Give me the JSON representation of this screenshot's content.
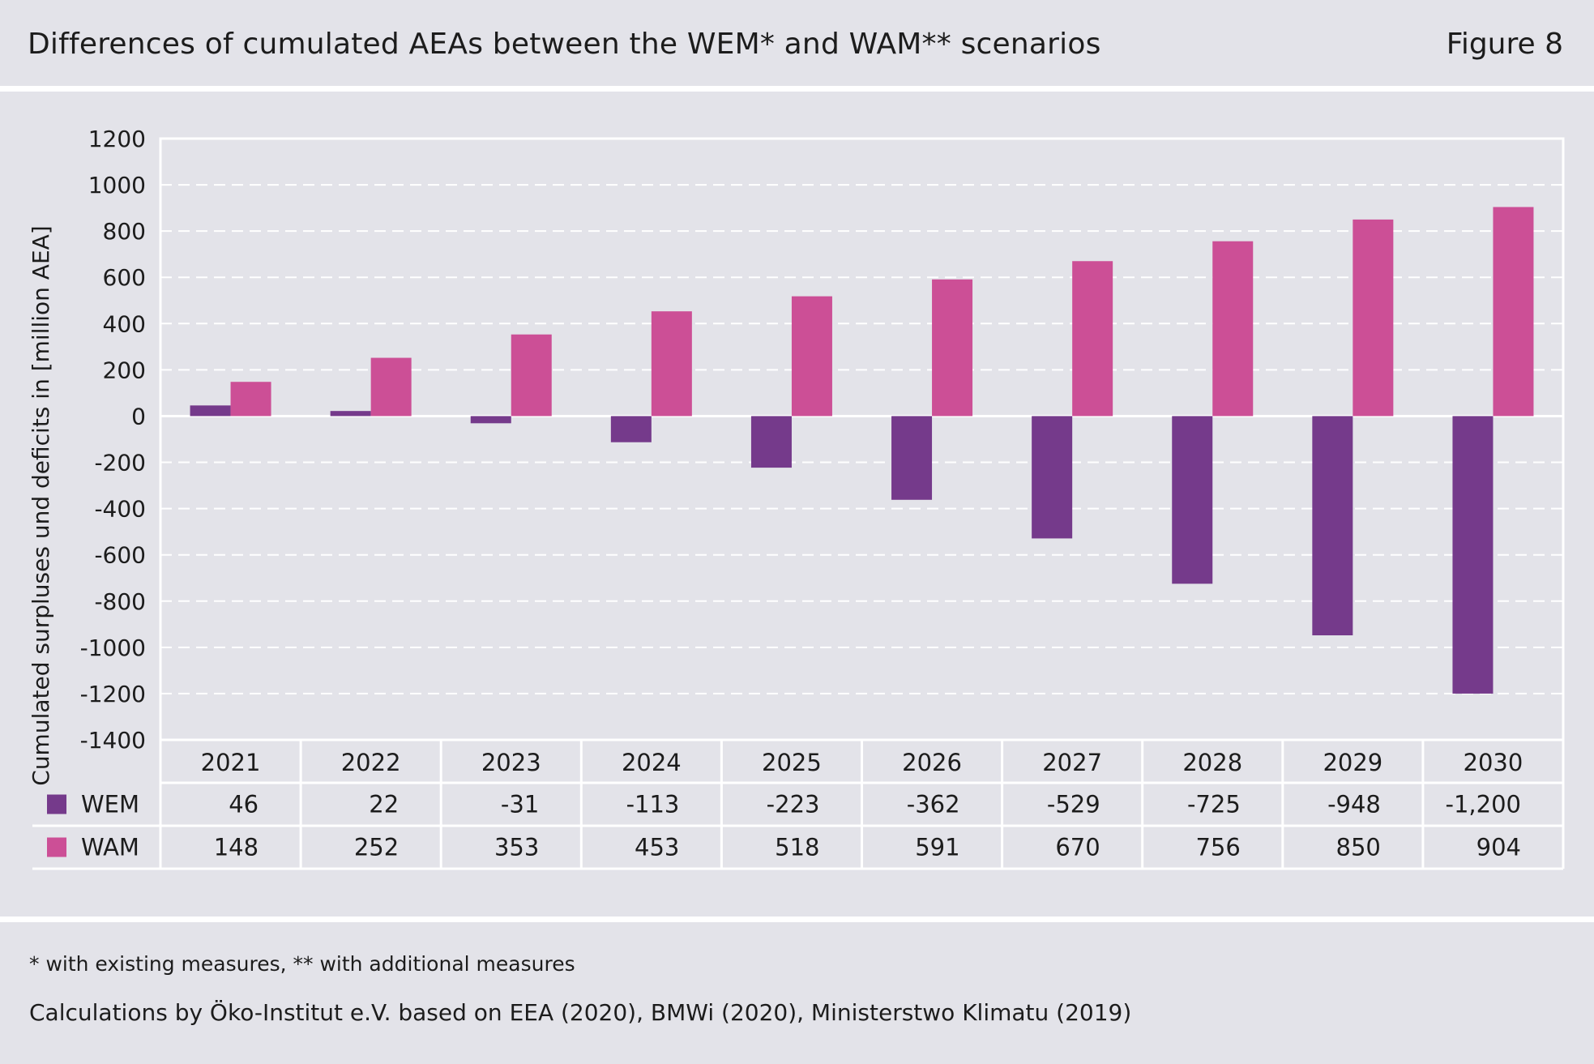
{
  "header": {
    "title": "Differences of cumulated AEAs between the WEM*  and WAM** scenarios",
    "figure_label": "Figure 8"
  },
  "footer": {
    "footnote": "* with existing measures, ** with additional measures",
    "source": "Calculations by Öko-Institut e.V. based on EEA (2020), BMWi (2020), Ministerstwo Klimatu (2019)"
  },
  "colors": {
    "WEM": "#753a8b",
    "WAM": "#cc4f96",
    "background": "#e3e3e9",
    "lines": "#ffffff"
  },
  "chart_data": {
    "type": "bar",
    "title": "Differences of cumulated AEAs between the WEM*  and WAM** scenarios",
    "xlabel": "",
    "ylabel": "Cumulated surpluses und deficits in [million AEA]",
    "ylim": [
      -1400,
      1200
    ],
    "yticks": [
      1200,
      1000,
      800,
      600,
      400,
      200,
      0,
      -200,
      -400,
      -600,
      -800,
      -1000,
      -1200,
      -1400
    ],
    "grid": true,
    "legend": "data-table-left",
    "categories": [
      "2021",
      "2022",
      "2023",
      "2024",
      "2025",
      "2026",
      "2027",
      "2028",
      "2029",
      "2030"
    ],
    "series": [
      {
        "name": "WEM",
        "values": [
          46,
          22,
          -31,
          -113,
          -223,
          -362,
          -529,
          -725,
          -948,
          -1200
        ],
        "labels": [
          "46",
          "22",
          "-31",
          "-113",
          "-223",
          "-362",
          "-529",
          "-725",
          "-948",
          "-1,200"
        ]
      },
      {
        "name": "WAM",
        "values": [
          148,
          252,
          353,
          453,
          518,
          591,
          670,
          756,
          850,
          904
        ],
        "labels": [
          "148",
          "252",
          "353",
          "453",
          "518",
          "591",
          "670",
          "756",
          "850",
          "904"
        ]
      }
    ]
  }
}
